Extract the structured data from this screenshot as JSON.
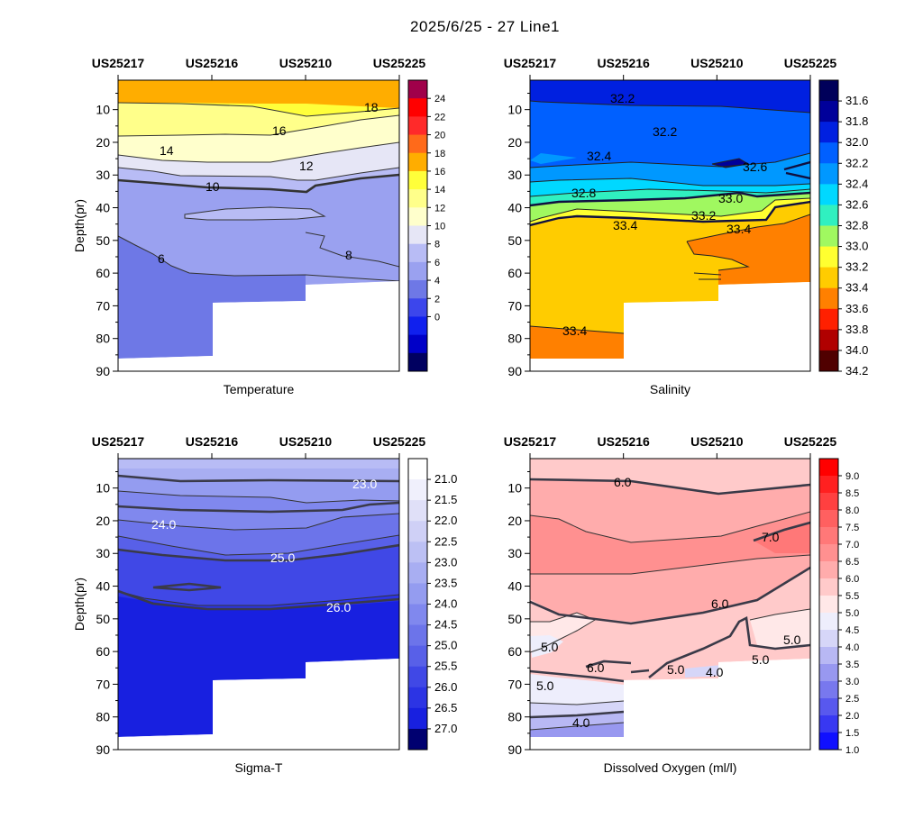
{
  "title": "2025/6/25 - 27  Line1",
  "stations": [
    "US25217",
    "US25216",
    "US25210",
    "US25225"
  ],
  "depth_axis": {
    "label": "Depth(pr)",
    "ticks": [
      "10",
      "20",
      "30",
      "40",
      "50",
      "60",
      "70",
      "80",
      "90"
    ],
    "range": [
      1,
      90
    ]
  },
  "chart_data": [
    {
      "type": "contour",
      "name": "temperature",
      "xlabel": "Temperature",
      "colorbar": {
        "labels": [
          "24",
          "22",
          "20",
          "18",
          "16",
          "14",
          "12",
          "10",
          "8",
          "6",
          "4",
          "2",
          "0"
        ],
        "colors": [
          "#a0004a",
          "#ff0000",
          "#ff2a2a",
          "#ff6a1a",
          "#ffad00",
          "#ffff3a",
          "#ffff8a",
          "#ffffcc",
          "#e6e6f6",
          "#b8bcf5",
          "#9aa1f0",
          "#6e78e6",
          "#3c46ec",
          "#1020ee",
          "#0000c8",
          "#000060"
        ]
      },
      "contour_labels": [
        "18",
        "16",
        "14",
        "12",
        "10",
        "6",
        "8"
      ]
    },
    {
      "type": "contour",
      "name": "salinity",
      "xlabel": "Salinity",
      "colorbar": {
        "labels": [
          "31.6",
          "31.8",
          "32.0",
          "32.2",
          "32.4",
          "32.6",
          "32.8",
          "33.0",
          "33.2",
          "33.4",
          "33.6",
          "33.8",
          "34.0",
          "34.2"
        ],
        "colors": [
          "#00005a",
          "#00009a",
          "#0020e0",
          "#0060ff",
          "#0098ff",
          "#00d8ff",
          "#30f0c0",
          "#a0f860",
          "#ffff30",
          "#ffcc00",
          "#ff8000",
          "#ff2000",
          "#b00000",
          "#500000"
        ]
      },
      "contour_labels": [
        "32.2",
        "32.2",
        "32.4",
        "32.6",
        "32.8",
        "33.0",
        "33.2",
        "33.4",
        "33.4",
        "33.4"
      ]
    },
    {
      "type": "contour",
      "name": "sigma_t",
      "xlabel": "Sigma-T",
      "colorbar": {
        "labels": [
          "21.0",
          "21.5",
          "22.0",
          "22.5",
          "23.0",
          "23.5",
          "24.0",
          "24.5",
          "25.0",
          "25.5",
          "26.0",
          "26.5",
          "27.0"
        ],
        "colors": [
          "#ffffff",
          "#f0f0fc",
          "#e0e0f8",
          "#cfd0f6",
          "#bcc0f4",
          "#a8aef2",
          "#949cf0",
          "#8088ee",
          "#6c74ea",
          "#5860e8",
          "#4048e6",
          "#2c34e4",
          "#1820e0",
          "#000070"
        ]
      },
      "contour_labels": [
        "23.0",
        "24.0",
        "25.0",
        "26.0"
      ]
    },
    {
      "type": "contour",
      "name": "dissolved_oxygen",
      "xlabel": "Dissolved Oxygen (ml/l)",
      "colorbar": {
        "labels": [
          "9.0",
          "8.5",
          "8.0",
          "7.5",
          "7.0",
          "6.5",
          "6.0",
          "5.5",
          "5.0",
          "4.5",
          "4.0",
          "3.5",
          "3.0",
          "2.5",
          "2.0",
          "1.5",
          "1.0"
        ],
        "colors": [
          "#ff0000",
          "#ff2020",
          "#ff4040",
          "#ff6060",
          "#ff7878",
          "#ff9090",
          "#ffacac",
          "#ffcaca",
          "#ffe8e8",
          "#eeeefc",
          "#d6d6f8",
          "#b8b8f4",
          "#9898f0",
          "#7878ee",
          "#5858ee",
          "#3838f2",
          "#1010ff"
        ]
      },
      "contour_labels": [
        "6.0",
        "7.0",
        "6.0",
        "5.0",
        "5.0",
        "6.0",
        "5.0",
        "4.0",
        "5.0",
        "5.0",
        "4.0"
      ]
    }
  ]
}
